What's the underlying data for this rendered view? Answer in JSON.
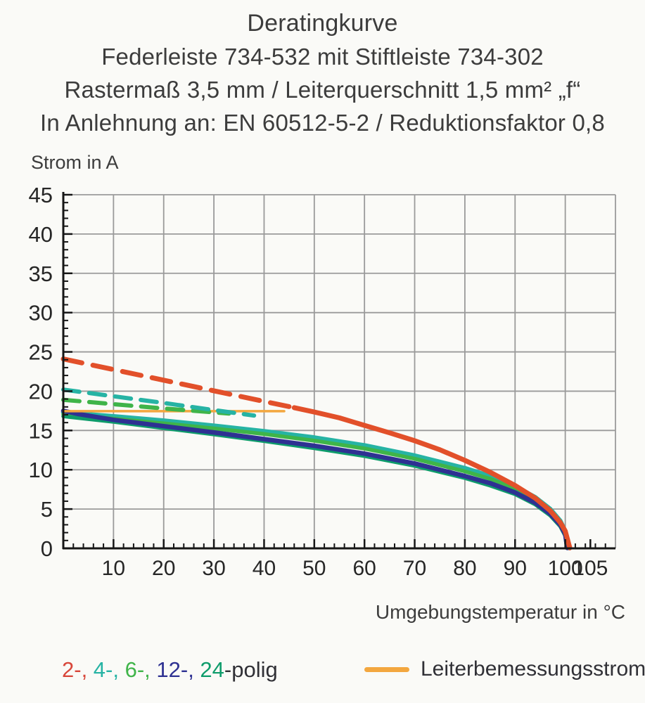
{
  "title": {
    "line1": "Deratingkurve",
    "line2": "Federleiste 734-532 mit Stiftleiste 734-302",
    "line3": "Rastermaß 3,5 mm / Leiterquerschnitt 1,5 mm² „f“",
    "line4": "In Anlehnung an: EN 60512-5-2 / Reduktionsfaktor 0,8"
  },
  "legend": {
    "poles_parts": [
      {
        "text": "2-,",
        "color": "#d8463a"
      },
      {
        "text": " 4-,",
        "color": "#26b3a4"
      },
      {
        "text": " 6-,",
        "color": "#3fb449"
      },
      {
        "text": " 12-,",
        "color": "#2e3192"
      },
      {
        "text": " 24",
        "color": "#0e9c6b"
      },
      {
        "text": "-polig",
        "color": "#303036"
      }
    ],
    "rated_current_label": "Leiterbemessungsstrom",
    "rated_current_color": "#f3a73f"
  },
  "chart_data": {
    "type": "line",
    "title": "Deratingkurve",
    "xlabel": "Umgebungstemperatur in °C",
    "ylabel": "Strom in A",
    "xlim": [
      0,
      110
    ],
    "ylim": [
      0,
      45
    ],
    "grid": true,
    "x_grid_step": 10,
    "y_grid_step": 5,
    "x_minor_step": 2,
    "y_minor_step": 1,
    "x_tick_labels": [
      10,
      20,
      30,
      40,
      50,
      60,
      70,
      80,
      90,
      100,
      105
    ],
    "y_tick_labels": [
      0,
      5,
      10,
      15,
      20,
      25,
      30,
      35,
      40,
      45
    ],
    "colors": {
      "grid": "#9a9a9a",
      "axis": "#161616",
      "tick_text": "#262626"
    },
    "series": [
      {
        "id": "4-polig-solid",
        "name": "4-polig",
        "color": "#26b3a4",
        "style": "solid",
        "width": 6.5,
        "points": [
          [
            0,
            17.3
          ],
          [
            10,
            16.8
          ],
          [
            20,
            16.25
          ],
          [
            30,
            15.6
          ],
          [
            40,
            14.9
          ],
          [
            50,
            14.1
          ],
          [
            60,
            13.1
          ],
          [
            70,
            11.8
          ],
          [
            80,
            10.2
          ],
          [
            85,
            9.2
          ],
          [
            90,
            7.9
          ],
          [
            94,
            6.5
          ],
          [
            97,
            5.0
          ],
          [
            99,
            3.5
          ],
          [
            100,
            2.2
          ],
          [
            100.6,
            0.05
          ]
        ]
      },
      {
        "id": "6-polig-solid",
        "name": "6-polig",
        "color": "#3fb449",
        "style": "solid",
        "width": 5.5,
        "points": [
          [
            0,
            17.05
          ],
          [
            10,
            16.5
          ],
          [
            20,
            15.9
          ],
          [
            30,
            15.25
          ],
          [
            40,
            14.55
          ],
          [
            50,
            13.7
          ],
          [
            60,
            12.7
          ],
          [
            70,
            11.4
          ],
          [
            80,
            9.8
          ],
          [
            85,
            8.85
          ],
          [
            90,
            7.55
          ],
          [
            94,
            6.2
          ],
          [
            97,
            4.7
          ],
          [
            99,
            3.2
          ],
          [
            100,
            2.0
          ],
          [
            100.5,
            0.05
          ]
        ]
      },
      {
        "id": "24-polig-solid",
        "name": "24-polig",
        "color": "#0e9c6b",
        "style": "solid",
        "width": 5.5,
        "points": [
          [
            0,
            16.8
          ],
          [
            10,
            16.1
          ],
          [
            20,
            15.3
          ],
          [
            30,
            14.5
          ],
          [
            40,
            13.65
          ],
          [
            50,
            12.75
          ],
          [
            60,
            11.75
          ],
          [
            70,
            10.5
          ],
          [
            80,
            8.95
          ],
          [
            85,
            8.0
          ],
          [
            90,
            6.9
          ],
          [
            94,
            5.6
          ],
          [
            97,
            4.2
          ],
          [
            99,
            2.8
          ],
          [
            100,
            1.6
          ],
          [
            100.3,
            0.05
          ]
        ]
      },
      {
        "id": "12-polig-solid",
        "name": "12-polig",
        "color": "#2e3192",
        "style": "solid",
        "width": 6.5,
        "points": [
          [
            0,
            17.5
          ],
          [
            3,
            17.1
          ],
          [
            10,
            16.35
          ],
          [
            20,
            15.55
          ],
          [
            30,
            14.75
          ],
          [
            40,
            13.9
          ],
          [
            50,
            13.05
          ],
          [
            60,
            12.05
          ],
          [
            70,
            10.8
          ],
          [
            80,
            9.2
          ],
          [
            85,
            8.3
          ],
          [
            90,
            7.1
          ],
          [
            94,
            5.8
          ],
          [
            97,
            4.4
          ],
          [
            99,
            3.0
          ],
          [
            100,
            1.8
          ],
          [
            100.4,
            0.05
          ]
        ]
      },
      {
        "id": "2-polig-solid",
        "name": "2-polig",
        "color": "#e2502a",
        "style": "solid",
        "width": 7,
        "points": [
          [
            46,
            17.9
          ],
          [
            50,
            17.35
          ],
          [
            55,
            16.6
          ],
          [
            60,
            15.65
          ],
          [
            65,
            14.7
          ],
          [
            70,
            13.7
          ],
          [
            75,
            12.55
          ],
          [
            80,
            11.2
          ],
          [
            85,
            9.7
          ],
          [
            90,
            8.0
          ],
          [
            94,
            6.4
          ],
          [
            97,
            4.8
          ],
          [
            99,
            3.3
          ],
          [
            100,
            2.2
          ],
          [
            100.9,
            0.05
          ]
        ]
      },
      {
        "id": "rated-current",
        "name": "Leiterbemessungsstrom",
        "color": "#f3a73f",
        "style": "solid",
        "width": 3.5,
        "points": [
          [
            0,
            17.45
          ],
          [
            44,
            17.45
          ]
        ]
      },
      {
        "id": "6-polig-dashed",
        "name": "6-polig ohne Reduktionsfaktor",
        "color": "#3fb449",
        "style": "dashed",
        "width": 6,
        "points": [
          [
            0,
            18.9
          ],
          [
            10,
            18.35
          ],
          [
            20,
            17.8
          ],
          [
            30,
            17.3
          ],
          [
            33,
            17.15
          ]
        ]
      },
      {
        "id": "4-polig-dashed",
        "name": "4-polig ohne Reduktionsfaktor",
        "color": "#26b3a4",
        "style": "dashed",
        "width": 6,
        "points": [
          [
            0,
            20.2
          ],
          [
            10,
            19.35
          ],
          [
            20,
            18.5
          ],
          [
            30,
            17.6
          ],
          [
            38,
            16.9
          ]
        ]
      },
      {
        "id": "2-polig-dashed",
        "name": "2-polig ohne Reduktionsfaktor",
        "color": "#e2502a",
        "style": "dashed",
        "width": 7,
        "points": [
          [
            0,
            24.1
          ],
          [
            10,
            22.75
          ],
          [
            20,
            21.4
          ],
          [
            30,
            20.05
          ],
          [
            40,
            18.7
          ],
          [
            46,
            17.9
          ]
        ]
      }
    ]
  }
}
